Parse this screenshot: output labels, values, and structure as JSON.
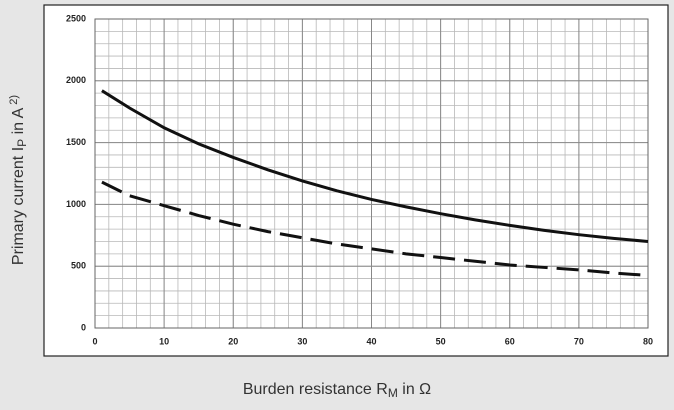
{
  "chart_data": {
    "type": "line",
    "ylabel": {
      "text": "Primary current I",
      "sub": "P",
      "rest": " in A",
      "sup": "2)"
    },
    "xlabel": {
      "text": "Burden resistance R",
      "sub": "M",
      "rest": " in Ω"
    },
    "x": [
      1,
      5,
      10,
      15,
      20,
      25,
      30,
      35,
      40,
      45,
      50,
      55,
      60,
      65,
      70,
      75,
      80
    ],
    "series": [
      {
        "color": "#111111",
        "dashed": false,
        "values": [
          1920,
          1780,
          1620,
          1490,
          1380,
          1280,
          1190,
          1110,
          1040,
          980,
          925,
          875,
          830,
          790,
          755,
          725,
          700
        ]
      },
      {
        "color": "#111111",
        "dashed": true,
        "values": [
          1180,
          1070,
          990,
          910,
          840,
          780,
          730,
          680,
          640,
          600,
          570,
          540,
          510,
          490,
          470,
          445,
          425
        ]
      }
    ],
    "xlim": [
      0,
      80
    ],
    "ylim": [
      0,
      2500
    ],
    "xticks": [
      0,
      10,
      20,
      30,
      40,
      50,
      60,
      70,
      80
    ],
    "yticks": [
      0,
      500,
      1000,
      1500,
      2000,
      2500
    ],
    "grid": true,
    "minor_grid_step": {
      "x": 2,
      "y": 100
    }
  }
}
